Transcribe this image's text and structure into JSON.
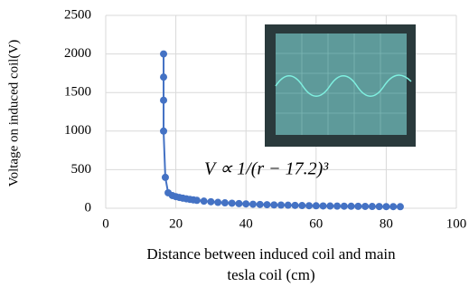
{
  "chart_data": {
    "type": "scatter",
    "ylabel": "Voltage on induced coil(V)",
    "xlabel": [
      "Distance between induced coil and main",
      "tesla coil (cm)"
    ],
    "annotation": "V ∝ 1/(r − 17.2)³",
    "color": "#4472c4",
    "xlim": [
      0,
      100
    ],
    "xticks": [
      0,
      20,
      40,
      60,
      80,
      100
    ],
    "ylim": [
      0,
      2500
    ],
    "yticks": [
      0,
      500,
      1000,
      1500,
      2000,
      2500
    ],
    "grid": true,
    "x": [
      16.5,
      16.5,
      16.5,
      16.5,
      17,
      17.8,
      19,
      20,
      21,
      22,
      23,
      24,
      25,
      26,
      28,
      30,
      32,
      34,
      36,
      38,
      40,
      42,
      44,
      46,
      48,
      50,
      52,
      54,
      56,
      58,
      60,
      62,
      64,
      66,
      68,
      70,
      72,
      74,
      76,
      78,
      80,
      82,
      84
    ],
    "values": [
      2000,
      1700,
      1400,
      1000,
      400,
      200,
      165,
      150,
      140,
      130,
      122,
      115,
      108,
      102,
      92,
      84,
      76,
      70,
      65,
      60,
      56,
      52,
      49,
      46,
      43,
      41,
      39,
      37,
      35,
      33,
      32,
      30,
      29,
      28,
      27,
      26,
      25,
      24,
      23,
      22,
      21,
      21,
      20
    ]
  }
}
